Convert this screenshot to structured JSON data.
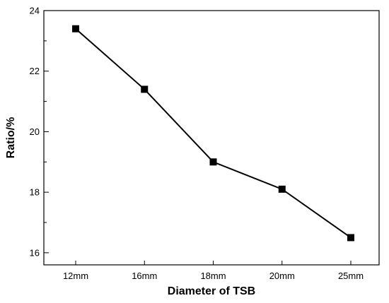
{
  "chart_data": {
    "type": "line",
    "title": "",
    "xlabel": "Diameter of TSB",
    "ylabel": "Ratio/%",
    "categories": [
      "12mm",
      "16mm",
      "18mm",
      "20mm",
      "25mm"
    ],
    "series": [
      {
        "values": [
          23.4,
          21.4,
          19.0,
          18.1,
          16.5
        ]
      }
    ],
    "ylim": [
      15.6,
      24.0
    ],
    "yticks": [
      16,
      18,
      20,
      22,
      24
    ],
    "grid": false,
    "legend": "none",
    "marker": "square",
    "colors": {
      "line": "#000000",
      "marker": "#000000"
    }
  }
}
